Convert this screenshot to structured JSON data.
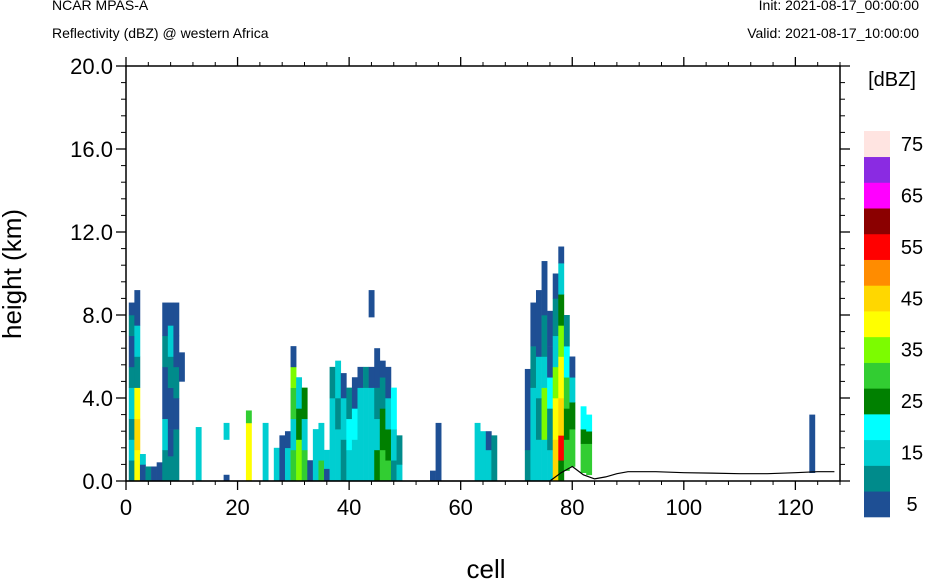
{
  "header": {
    "model": "NCAR MPAS-A",
    "field": "Reflectivity (dBZ) @ western Africa",
    "init": "Init: 2021-08-17_00:00:00",
    "valid": "Valid: 2021-08-17_10:00:00"
  },
  "chart_data": {
    "type": "heatmap",
    "xlabel": "cell",
    "ylabel": "height (km)",
    "xlim": [
      0,
      128
    ],
    "ylim": [
      0,
      20
    ],
    "x_ticks": [
      0,
      20,
      40,
      60,
      80,
      100,
      120
    ],
    "y_ticks": [
      0,
      4,
      8,
      12,
      16,
      20
    ],
    "y_tick_labels": [
      "0.0",
      "4.0",
      "8.0",
      "12.0",
      "16.0",
      "20.0"
    ],
    "colorbar": {
      "unit": "[dBZ]",
      "levels": [
        5,
        10,
        15,
        20,
        25,
        30,
        35,
        40,
        45,
        50,
        55,
        60,
        65,
        70,
        75
      ],
      "labels": [
        "5",
        "15",
        "25",
        "35",
        "45",
        "55",
        "65",
        "75"
      ],
      "colors": [
        "#1e4f94",
        "#008b8b",
        "#00ced1",
        "#00ffff",
        "#008000",
        "#32cd32",
        "#7cfc00",
        "#ffff00",
        "#ffd700",
        "#ff8c00",
        "#ff0000",
        "#8b0000",
        "#ff00ff",
        "#8a2be2",
        "#ffe4e1"
      ]
    },
    "terrain": [
      [
        0,
        0
      ],
      [
        76,
        0
      ],
      [
        78,
        0.4
      ],
      [
        80,
        0.7
      ],
      [
        82,
        0.3
      ],
      [
        84,
        0.1
      ],
      [
        86,
        0.2
      ],
      [
        88,
        0.35
      ],
      [
        90,
        0.45
      ],
      [
        95,
        0.45
      ],
      [
        100,
        0.4
      ],
      [
        105,
        0.38
      ],
      [
        110,
        0.35
      ],
      [
        115,
        0.35
      ],
      [
        120,
        0.4
      ],
      [
        124,
        0.45
      ],
      [
        127,
        0.45
      ]
    ],
    "columns": [
      {
        "x": 1,
        "cells": [
          [
            0,
            1,
            1
          ],
          [
            1,
            2,
            2
          ],
          [
            2,
            3,
            1
          ],
          [
            3,
            4.5,
            2
          ],
          [
            4.5,
            5.5,
            1
          ],
          [
            5.5,
            7,
            0
          ],
          [
            7,
            8,
            1
          ],
          [
            8,
            8.6,
            0
          ]
        ]
      },
      {
        "x": 2,
        "cells": [
          [
            0,
            1.5,
            7
          ],
          [
            1.5,
            3,
            8
          ],
          [
            3,
            4.5,
            7
          ],
          [
            4.5,
            6,
            1
          ],
          [
            6,
            7.5,
            2
          ],
          [
            7.5,
            9.2,
            0
          ]
        ]
      },
      {
        "x": 3,
        "cells": [
          [
            0,
            0.8,
            0
          ],
          [
            0.8,
            1.3,
            2
          ]
        ]
      },
      {
        "x": 4,
        "cells": [
          [
            0,
            0.7,
            1
          ]
        ]
      },
      {
        "x": 5,
        "cells": [
          [
            0,
            0.7,
            0
          ]
        ]
      },
      {
        "x": 6,
        "cells": [
          [
            0,
            0.9,
            0
          ]
        ]
      },
      {
        "x": 7,
        "cells": [
          [
            0,
            1.5,
            1
          ],
          [
            1.5,
            3,
            2
          ],
          [
            3,
            5.5,
            0
          ],
          [
            5.5,
            7,
            1
          ],
          [
            7,
            8.6,
            0
          ]
        ]
      },
      {
        "x": 8,
        "cells": [
          [
            0,
            1.2,
            1
          ],
          [
            1.2,
            2.5,
            0
          ],
          [
            2.5,
            4.5,
            0
          ],
          [
            4.5,
            6,
            1
          ],
          [
            6,
            7.5,
            2
          ],
          [
            7.5,
            8.6,
            0
          ]
        ]
      },
      {
        "x": 9,
        "cells": [
          [
            0,
            2.5,
            1
          ],
          [
            2.5,
            4,
            0
          ],
          [
            4,
            5.5,
            1
          ],
          [
            5.5,
            7,
            0
          ],
          [
            7,
            8.6,
            0
          ]
        ]
      },
      {
        "x": 10,
        "cells": [
          [
            4.8,
            6.2,
            0
          ]
        ]
      },
      {
        "x": 13,
        "cells": [
          [
            0,
            2.6,
            2
          ]
        ]
      },
      {
        "x": 18,
        "cells": [
          [
            0,
            0.3,
            0
          ],
          [
            2,
            2.8,
            2
          ]
        ]
      },
      {
        "x": 22,
        "cells": [
          [
            0,
            2.8,
            7
          ],
          [
            2.8,
            3.4,
            5
          ]
        ]
      },
      {
        "x": 25,
        "cells": [
          [
            0,
            2.8,
            2
          ]
        ]
      },
      {
        "x": 27,
        "cells": [
          [
            0,
            1.6,
            2
          ]
        ]
      },
      {
        "x": 28,
        "cells": [
          [
            0,
            2.2,
            0
          ]
        ]
      },
      {
        "x": 29,
        "cells": [
          [
            0,
            1.6,
            2
          ],
          [
            1.6,
            2.4,
            0
          ]
        ]
      },
      {
        "x": 30,
        "cells": [
          [
            0,
            1.5,
            5
          ],
          [
            1.5,
            3,
            2
          ],
          [
            3,
            4.5,
            5
          ],
          [
            4.5,
            5.5,
            6
          ],
          [
            5.5,
            6.5,
            0
          ]
        ]
      },
      {
        "x": 31,
        "cells": [
          [
            0,
            2,
            6
          ],
          [
            2,
            3.5,
            4
          ],
          [
            3.5,
            5,
            2
          ]
        ]
      },
      {
        "x": 32,
        "cells": [
          [
            0,
            1.5,
            5
          ],
          [
            1.5,
            3,
            2
          ],
          [
            3,
            4.5,
            4
          ]
        ]
      },
      {
        "x": 33,
        "cells": [
          [
            0,
            1,
            0
          ]
        ]
      },
      {
        "x": 34,
        "cells": [
          [
            0,
            2.5,
            2
          ]
        ]
      },
      {
        "x": 35,
        "cells": [
          [
            0,
            1,
            5
          ],
          [
            1,
            2.8,
            2
          ]
        ]
      },
      {
        "x": 36,
        "cells": [
          [
            0,
            0.6,
            0
          ],
          [
            0.6,
            1.5,
            2
          ]
        ]
      },
      {
        "x": 37,
        "cells": [
          [
            0,
            2,
            2
          ],
          [
            2,
            4,
            2
          ],
          [
            4,
            5.5,
            1
          ]
        ]
      },
      {
        "x": 38,
        "cells": [
          [
            0,
            2.5,
            2
          ],
          [
            2.5,
            4,
            1
          ],
          [
            4,
            5.8,
            2
          ]
        ]
      },
      {
        "x": 39,
        "cells": [
          [
            0,
            2,
            1
          ],
          [
            2,
            4,
            2
          ],
          [
            4,
            5.2,
            0
          ]
        ]
      },
      {
        "x": 40,
        "cells": [
          [
            0,
            1.5,
            2
          ],
          [
            1.5,
            3,
            3
          ],
          [
            3,
            4.5,
            1
          ]
        ]
      },
      {
        "x": 41,
        "cells": [
          [
            0,
            2,
            2
          ],
          [
            2,
            3.5,
            3
          ],
          [
            3.5,
            5,
            0
          ]
        ]
      },
      {
        "x": 42,
        "cells": [
          [
            0,
            4.5,
            2
          ],
          [
            4.5,
            5.5,
            0
          ]
        ]
      },
      {
        "x": 43,
        "cells": [
          [
            0,
            4.5,
            2
          ],
          [
            4.5,
            5.5,
            1
          ]
        ]
      },
      {
        "x": 44,
        "cells": [
          [
            0,
            2,
            2
          ],
          [
            2,
            4.5,
            2
          ],
          [
            4.5,
            5.5,
            0
          ],
          [
            7.9,
            9.2,
            0
          ]
        ]
      },
      {
        "x": 45,
        "cells": [
          [
            0,
            1.5,
            4
          ],
          [
            1.5,
            3,
            2
          ],
          [
            3,
            4.5,
            1
          ],
          [
            4.5,
            6.4,
            0
          ]
        ]
      },
      {
        "x": 46,
        "cells": [
          [
            0,
            1.5,
            5
          ],
          [
            1.5,
            3.5,
            4
          ],
          [
            3.5,
            5,
            1
          ],
          [
            5,
            5.8,
            0
          ]
        ]
      },
      {
        "x": 47,
        "cells": [
          [
            0,
            1,
            5
          ],
          [
            1,
            2.5,
            4
          ],
          [
            2.5,
            4,
            2
          ],
          [
            4,
            5.5,
            0
          ]
        ]
      },
      {
        "x": 48,
        "cells": [
          [
            0,
            1,
            1
          ],
          [
            1,
            2.5,
            2
          ],
          [
            2.5,
            4.5,
            3
          ]
        ]
      },
      {
        "x": 49,
        "cells": [
          [
            0,
            0.8,
            2
          ],
          [
            0.8,
            2.2,
            1
          ]
        ]
      },
      {
        "x": 55,
        "cells": [
          [
            0,
            0.5,
            0
          ]
        ]
      },
      {
        "x": 56,
        "cells": [
          [
            0,
            2.8,
            0
          ]
        ]
      },
      {
        "x": 63,
        "cells": [
          [
            0,
            2.8,
            2
          ]
        ]
      },
      {
        "x": 64,
        "cells": [
          [
            0,
            2.4,
            2
          ]
        ]
      },
      {
        "x": 65,
        "cells": [
          [
            0,
            1.5,
            2
          ],
          [
            1.5,
            2.4,
            0
          ]
        ]
      },
      {
        "x": 66,
        "cells": [
          [
            0,
            2.2,
            1
          ]
        ]
      },
      {
        "x": 72,
        "cells": [
          [
            0,
            1.5,
            1
          ],
          [
            1.5,
            5.4,
            0
          ]
        ]
      },
      {
        "x": 73,
        "cells": [
          [
            0,
            2,
            2
          ],
          [
            2,
            4.5,
            2
          ],
          [
            4.5,
            6.5,
            1
          ],
          [
            6.5,
            8.6,
            0
          ]
        ]
      },
      {
        "x": 74,
        "cells": [
          [
            0,
            2,
            2
          ],
          [
            2,
            4,
            1
          ],
          [
            4,
            6,
            2
          ],
          [
            6,
            9.2,
            0
          ]
        ]
      },
      {
        "x": 75,
        "cells": [
          [
            0,
            2,
            2
          ],
          [
            2,
            4.5,
            6
          ],
          [
            4.5,
            6,
            2
          ],
          [
            6,
            8,
            1
          ],
          [
            8,
            10.6,
            0
          ]
        ]
      },
      {
        "x": 76,
        "cells": [
          [
            0,
            1.5,
            2
          ],
          [
            1.5,
            3.5,
            1
          ],
          [
            3.5,
            5,
            3
          ],
          [
            5,
            6.5,
            0
          ],
          [
            6.5,
            8.2,
            0
          ]
        ]
      },
      {
        "x": 77,
        "cells": [
          [
            0,
            2,
            8
          ],
          [
            2,
            4,
            7
          ],
          [
            4,
            5.5,
            6
          ],
          [
            5.5,
            7,
            2
          ],
          [
            7,
            8.8,
            1
          ],
          [
            8.8,
            10,
            0
          ]
        ]
      },
      {
        "x": 78,
        "cells": [
          [
            0,
            1,
            4
          ],
          [
            1,
            2.2,
            10
          ],
          [
            2.2,
            4,
            8
          ],
          [
            4,
            6,
            7
          ],
          [
            6,
            7.5,
            6
          ],
          [
            7.5,
            9,
            4
          ],
          [
            9,
            10.5,
            2
          ],
          [
            10.5,
            11.3,
            0
          ]
        ]
      },
      {
        "x": 79,
        "cells": [
          [
            0.5,
            2,
            5
          ],
          [
            2,
            3.5,
            4
          ],
          [
            3.5,
            5,
            5
          ],
          [
            5,
            6.5,
            3
          ],
          [
            6.5,
            8,
            1
          ]
        ]
      },
      {
        "x": 80,
        "cells": [
          [
            0.7,
            2.5,
            5
          ],
          [
            2.5,
            3.8,
            4
          ],
          [
            3.8,
            5,
            2
          ],
          [
            5,
            6,
            0
          ]
        ]
      },
      {
        "x": 82,
        "cells": [
          [
            0.4,
            1.8,
            5
          ],
          [
            1.8,
            2.5,
            4
          ],
          [
            2.5,
            3.6,
            3
          ]
        ]
      },
      {
        "x": 83,
        "cells": [
          [
            0.3,
            1.8,
            5
          ],
          [
            1.8,
            2.4,
            4
          ],
          [
            2.4,
            3.2,
            3
          ]
        ]
      },
      {
        "x": 123,
        "cells": [
          [
            0.4,
            3.2,
            0
          ]
        ]
      }
    ]
  }
}
